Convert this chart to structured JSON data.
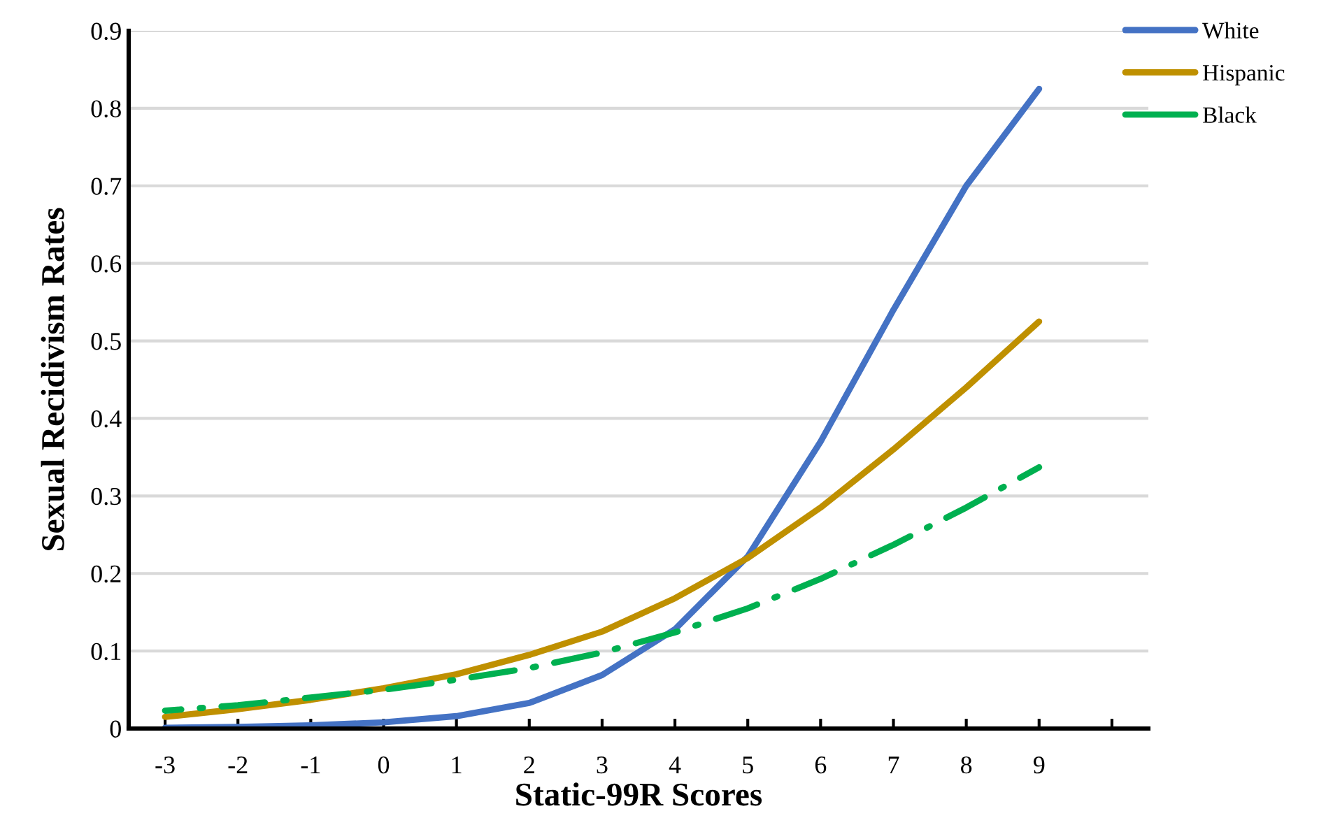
{
  "chart_data": {
    "type": "line",
    "xlabel": "Static-99R Scores",
    "ylabel": "Sexual Recidivism Rates",
    "x": [
      -3,
      -2,
      -1,
      0,
      1,
      2,
      3,
      4,
      5,
      6,
      7,
      8,
      9
    ],
    "series": [
      {
        "name": "White",
        "color": "#4472c4",
        "line_style": "solid",
        "values": [
          0.001,
          0.002,
          0.004,
          0.008,
          0.016,
          0.033,
          0.069,
          0.128,
          0.222,
          0.37,
          0.54,
          0.7,
          0.825
        ]
      },
      {
        "name": "Hispanic",
        "color": "#bf9000",
        "line_style": "solid",
        "values": [
          0.015,
          0.025,
          0.037,
          0.052,
          0.07,
          0.095,
          0.125,
          0.168,
          0.22,
          0.285,
          0.36,
          0.44,
          0.525
        ]
      },
      {
        "name": "Black",
        "color": "#00b050",
        "line_style": "dashdot",
        "values": [
          0.023,
          0.03,
          0.04,
          0.05,
          0.063,
          0.078,
          0.098,
          0.124,
          0.155,
          0.193,
          0.237,
          0.285,
          0.337
        ]
      }
    ],
    "xlim": [
      -3.5,
      10.5
    ],
    "xticks": [
      -3,
      -2,
      -1,
      0,
      1,
      2,
      3,
      4,
      5,
      6,
      7,
      8,
      9,
      {
        "value": 10,
        "label": null
      }
    ],
    "ylim": [
      0,
      0.9
    ],
    "yticks": [
      0,
      0.1,
      0.2,
      0.3,
      0.4,
      0.5,
      0.6,
      0.7,
      0.8,
      0.9
    ],
    "grid": "y",
    "legend": "right",
    "marker": "none"
  }
}
